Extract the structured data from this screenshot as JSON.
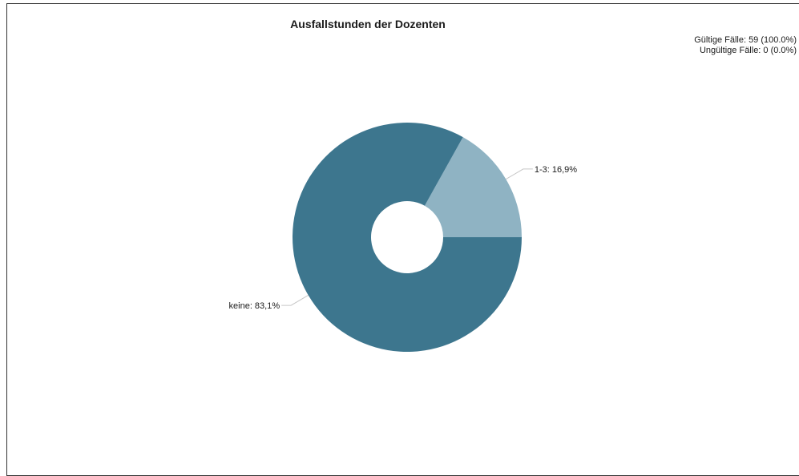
{
  "stats": {
    "valid": "Gültige Fälle: 59 (100.0%)",
    "invalid": "Ungültige Fälle: 0 (0.0%)"
  },
  "chart_data": {
    "type": "pie",
    "title": "Ausfallstunden der Dozenten",
    "donut": true,
    "slices": [
      {
        "label": "1-3",
        "value": 16.9,
        "display": "1-3: 16,9%",
        "color": "#8fb3c3"
      },
      {
        "label": "keine",
        "value": 83.1,
        "display": "keine: 83,1%",
        "color": "#3d768e"
      }
    ]
  }
}
